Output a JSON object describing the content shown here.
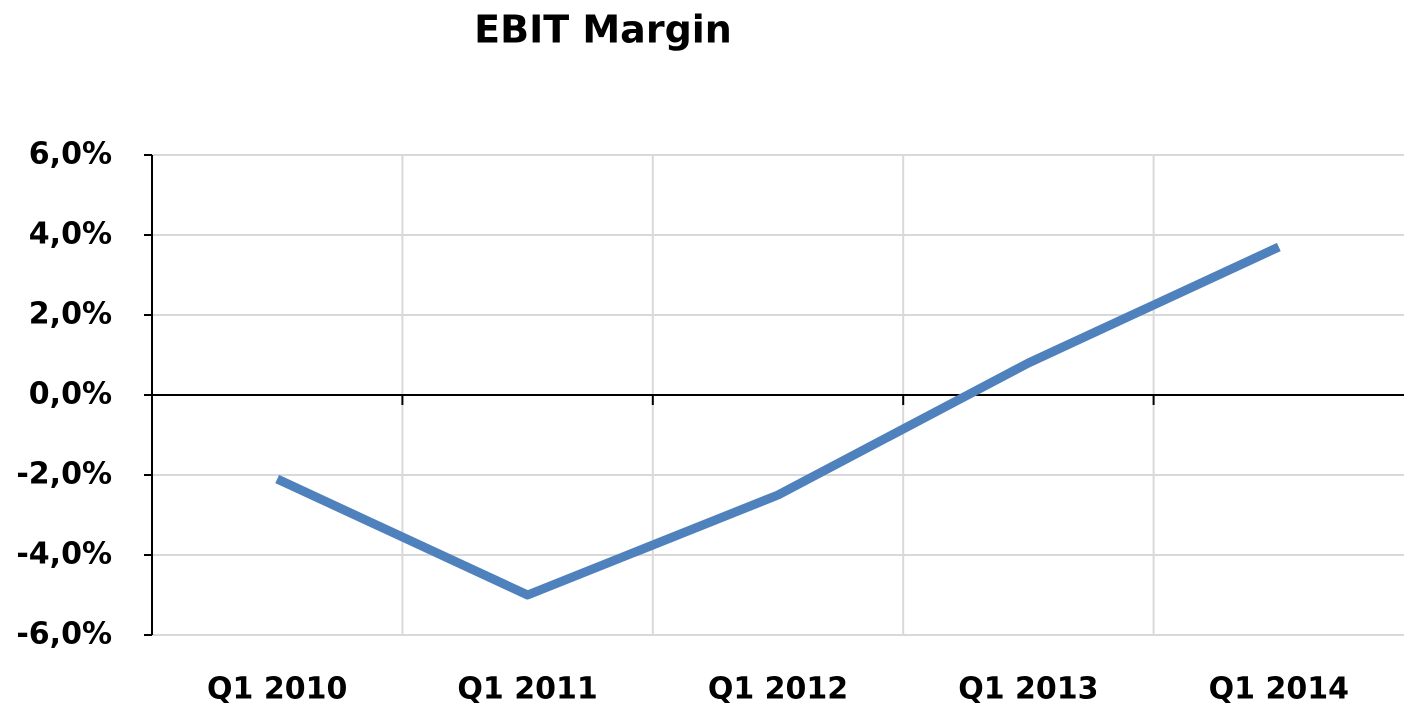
{
  "chart_data": {
    "type": "line",
    "title": "EBIT Margin",
    "categories": [
      "Q1 2010",
      "Q1 2011",
      "Q1 2012",
      "Q1 2013",
      "Q1 2014"
    ],
    "series": [
      {
        "name": "EBIT Margin",
        "color": "#4f81bd",
        "values": [
          -2.1,
          -5.0,
          -2.5,
          0.8,
          3.7
        ]
      }
    ],
    "ylim": [
      -6,
      6
    ],
    "yticks": [
      {
        "value": -6,
        "label": "-6,0%"
      },
      {
        "value": -4,
        "label": "-4,0%"
      },
      {
        "value": -2,
        "label": "-2,0%"
      },
      {
        "value": 0,
        "label": "0,0%"
      },
      {
        "value": 2,
        "label": "2,0%"
      },
      {
        "value": 4,
        "label": "4,0%"
      },
      {
        "value": 6,
        "label": "6,0%"
      }
    ],
    "grid": true
  }
}
